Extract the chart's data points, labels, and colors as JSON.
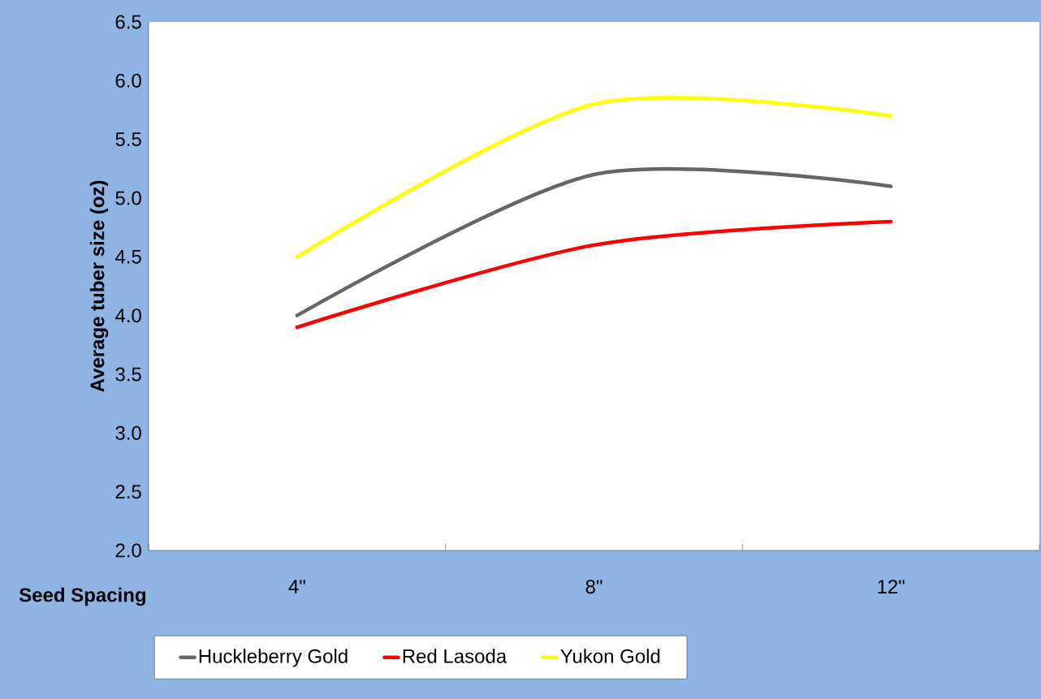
{
  "chart_data": {
    "type": "line",
    "xlabel": "Seed Spacing",
    "ylabel": "Average tuber size (oz)",
    "categories": [
      "4\"",
      "8\"",
      "12\""
    ],
    "series": [
      {
        "name": "Huckleberry Gold",
        "color": "#666666",
        "values": [
          4.0,
          5.2,
          5.1
        ]
      },
      {
        "name": "Red Lasoda",
        "color": "#ff0000",
        "values": [
          3.9,
          4.6,
          4.8
        ]
      },
      {
        "name": "Yukon Gold",
        "color": "#ffff00",
        "values": [
          4.5,
          5.8,
          5.7
        ]
      }
    ],
    "ylim": [
      2.0,
      6.5
    ],
    "yticks": [
      {
        "value": 2.0,
        "label": "2.0"
      },
      {
        "value": 2.5,
        "label": "2.5"
      },
      {
        "value": 3.0,
        "label": "3.0"
      },
      {
        "value": 3.5,
        "label": "3.5"
      },
      {
        "value": 4.0,
        "label": "4.0"
      },
      {
        "value": 4.5,
        "label": "4.5"
      },
      {
        "value": 5.0,
        "label": "5.0"
      },
      {
        "value": 5.5,
        "label": "5.5"
      },
      {
        "value": 6.0,
        "label": "6.0"
      },
      {
        "value": 6.5,
        "label": "6.5"
      }
    ],
    "legend": "bottom",
    "marker": "none",
    "line_style": "solid",
    "grid": false
  }
}
